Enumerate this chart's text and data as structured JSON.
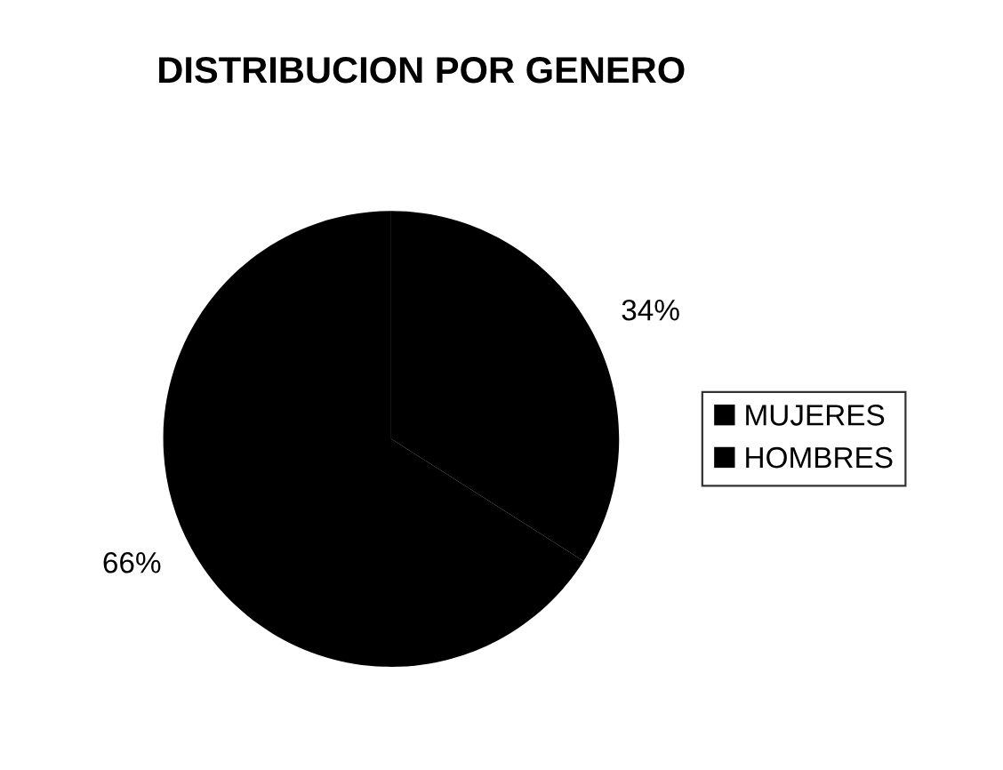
{
  "chart_data": {
    "type": "pie",
    "title": "DISTRIBUCION POR GENERO",
    "categories": [
      "MUJERES",
      "HOMBRES"
    ],
    "values": [
      34,
      66
    ],
    "colors": [
      "#000000",
      "#000000"
    ],
    "value_labels": [
      "34%",
      "66%"
    ],
    "legend": "right"
  }
}
